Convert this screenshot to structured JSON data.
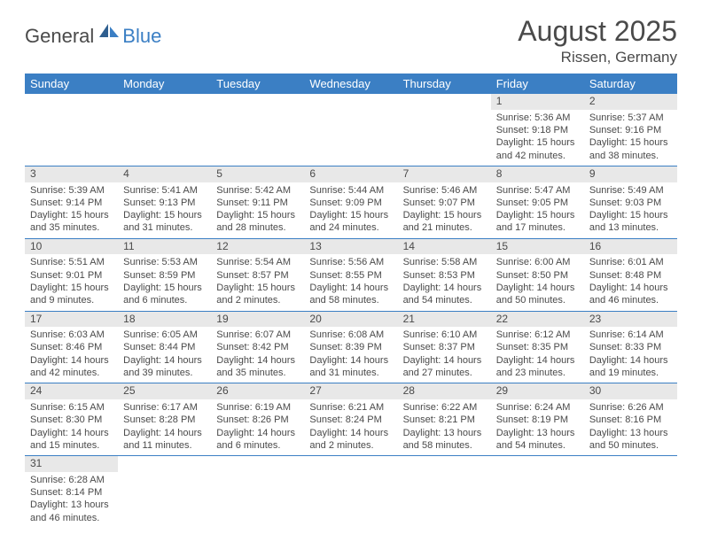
{
  "logo": {
    "part1": "General",
    "part2": "Blue"
  },
  "title": "August 2025",
  "location": "Rissen, Germany",
  "colors": {
    "header_bg": "#3b7fc4",
    "header_text": "#ffffff",
    "daynum_bg": "#e8e8e8",
    "text": "#4a4a4a",
    "rule": "#3b7fc4",
    "page_bg": "#ffffff"
  },
  "font": {
    "title_size": 32,
    "location_size": 17,
    "th_size": 13,
    "cell_size": 11
  },
  "weekdays": [
    "Sunday",
    "Monday",
    "Tuesday",
    "Wednesday",
    "Thursday",
    "Friday",
    "Saturday"
  ],
  "weeks": [
    [
      null,
      null,
      null,
      null,
      null,
      {
        "n": "1",
        "sr": "Sunrise: 5:36 AM",
        "ss": "Sunset: 9:18 PM",
        "dl": "Daylight: 15 hours and 42 minutes."
      },
      {
        "n": "2",
        "sr": "Sunrise: 5:37 AM",
        "ss": "Sunset: 9:16 PM",
        "dl": "Daylight: 15 hours and 38 minutes."
      }
    ],
    [
      {
        "n": "3",
        "sr": "Sunrise: 5:39 AM",
        "ss": "Sunset: 9:14 PM",
        "dl": "Daylight: 15 hours and 35 minutes."
      },
      {
        "n": "4",
        "sr": "Sunrise: 5:41 AM",
        "ss": "Sunset: 9:13 PM",
        "dl": "Daylight: 15 hours and 31 minutes."
      },
      {
        "n": "5",
        "sr": "Sunrise: 5:42 AM",
        "ss": "Sunset: 9:11 PM",
        "dl": "Daylight: 15 hours and 28 minutes."
      },
      {
        "n": "6",
        "sr": "Sunrise: 5:44 AM",
        "ss": "Sunset: 9:09 PM",
        "dl": "Daylight: 15 hours and 24 minutes."
      },
      {
        "n": "7",
        "sr": "Sunrise: 5:46 AM",
        "ss": "Sunset: 9:07 PM",
        "dl": "Daylight: 15 hours and 21 minutes."
      },
      {
        "n": "8",
        "sr": "Sunrise: 5:47 AM",
        "ss": "Sunset: 9:05 PM",
        "dl": "Daylight: 15 hours and 17 minutes."
      },
      {
        "n": "9",
        "sr": "Sunrise: 5:49 AM",
        "ss": "Sunset: 9:03 PM",
        "dl": "Daylight: 15 hours and 13 minutes."
      }
    ],
    [
      {
        "n": "10",
        "sr": "Sunrise: 5:51 AM",
        "ss": "Sunset: 9:01 PM",
        "dl": "Daylight: 15 hours and 9 minutes."
      },
      {
        "n": "11",
        "sr": "Sunrise: 5:53 AM",
        "ss": "Sunset: 8:59 PM",
        "dl": "Daylight: 15 hours and 6 minutes."
      },
      {
        "n": "12",
        "sr": "Sunrise: 5:54 AM",
        "ss": "Sunset: 8:57 PM",
        "dl": "Daylight: 15 hours and 2 minutes."
      },
      {
        "n": "13",
        "sr": "Sunrise: 5:56 AM",
        "ss": "Sunset: 8:55 PM",
        "dl": "Daylight: 14 hours and 58 minutes."
      },
      {
        "n": "14",
        "sr": "Sunrise: 5:58 AM",
        "ss": "Sunset: 8:53 PM",
        "dl": "Daylight: 14 hours and 54 minutes."
      },
      {
        "n": "15",
        "sr": "Sunrise: 6:00 AM",
        "ss": "Sunset: 8:50 PM",
        "dl": "Daylight: 14 hours and 50 minutes."
      },
      {
        "n": "16",
        "sr": "Sunrise: 6:01 AM",
        "ss": "Sunset: 8:48 PM",
        "dl": "Daylight: 14 hours and 46 minutes."
      }
    ],
    [
      {
        "n": "17",
        "sr": "Sunrise: 6:03 AM",
        "ss": "Sunset: 8:46 PM",
        "dl": "Daylight: 14 hours and 42 minutes."
      },
      {
        "n": "18",
        "sr": "Sunrise: 6:05 AM",
        "ss": "Sunset: 8:44 PM",
        "dl": "Daylight: 14 hours and 39 minutes."
      },
      {
        "n": "19",
        "sr": "Sunrise: 6:07 AM",
        "ss": "Sunset: 8:42 PM",
        "dl": "Daylight: 14 hours and 35 minutes."
      },
      {
        "n": "20",
        "sr": "Sunrise: 6:08 AM",
        "ss": "Sunset: 8:39 PM",
        "dl": "Daylight: 14 hours and 31 minutes."
      },
      {
        "n": "21",
        "sr": "Sunrise: 6:10 AM",
        "ss": "Sunset: 8:37 PM",
        "dl": "Daylight: 14 hours and 27 minutes."
      },
      {
        "n": "22",
        "sr": "Sunrise: 6:12 AM",
        "ss": "Sunset: 8:35 PM",
        "dl": "Daylight: 14 hours and 23 minutes."
      },
      {
        "n": "23",
        "sr": "Sunrise: 6:14 AM",
        "ss": "Sunset: 8:33 PM",
        "dl": "Daylight: 14 hours and 19 minutes."
      }
    ],
    [
      {
        "n": "24",
        "sr": "Sunrise: 6:15 AM",
        "ss": "Sunset: 8:30 PM",
        "dl": "Daylight: 14 hours and 15 minutes."
      },
      {
        "n": "25",
        "sr": "Sunrise: 6:17 AM",
        "ss": "Sunset: 8:28 PM",
        "dl": "Daylight: 14 hours and 11 minutes."
      },
      {
        "n": "26",
        "sr": "Sunrise: 6:19 AM",
        "ss": "Sunset: 8:26 PM",
        "dl": "Daylight: 14 hours and 6 minutes."
      },
      {
        "n": "27",
        "sr": "Sunrise: 6:21 AM",
        "ss": "Sunset: 8:24 PM",
        "dl": "Daylight: 14 hours and 2 minutes."
      },
      {
        "n": "28",
        "sr": "Sunrise: 6:22 AM",
        "ss": "Sunset: 8:21 PM",
        "dl": "Daylight: 13 hours and 58 minutes."
      },
      {
        "n": "29",
        "sr": "Sunrise: 6:24 AM",
        "ss": "Sunset: 8:19 PM",
        "dl": "Daylight: 13 hours and 54 minutes."
      },
      {
        "n": "30",
        "sr": "Sunrise: 6:26 AM",
        "ss": "Sunset: 8:16 PM",
        "dl": "Daylight: 13 hours and 50 minutes."
      }
    ],
    [
      {
        "n": "31",
        "sr": "Sunrise: 6:28 AM",
        "ss": "Sunset: 8:14 PM",
        "dl": "Daylight: 13 hours and 46 minutes."
      },
      null,
      null,
      null,
      null,
      null,
      null
    ]
  ]
}
